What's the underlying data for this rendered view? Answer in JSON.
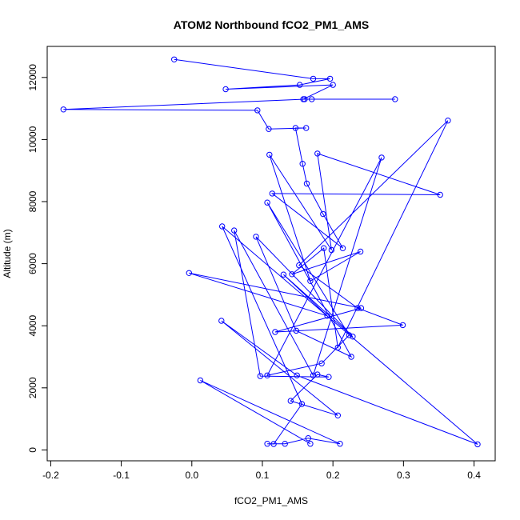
{
  "chart_data": {
    "type": "scatter",
    "title": "ATOM2 Northbound fCO2_PM1_AMS",
    "xlabel": "fCO2_PM1_AMS",
    "ylabel": "Altitude (m)",
    "xlim": [
      -0.205,
      0.43
    ],
    "ylim": [
      -350,
      13000
    ],
    "xticks": [
      -0.2,
      -0.1,
      0.0,
      0.1,
      0.2,
      0.3,
      0.4
    ],
    "xtick_labels": [
      "-0.2",
      "-0.1",
      "0.0",
      "0.1",
      "0.2",
      "0.3",
      "0.4"
    ],
    "yticks": [
      0,
      2000,
      4000,
      6000,
      8000,
      10000,
      12000
    ],
    "ytick_labels": [
      "0",
      "2000",
      "4000",
      "6000",
      "8000",
      "10000",
      "12000"
    ],
    "grid": false,
    "series_color": "#0000ff",
    "series": [
      {
        "mode": "lines+markers",
        "x": [
          -0.025,
          0.172,
          0.196,
          0.153,
          0.048,
          0.2,
          0.158,
          0.17,
          0.288,
          0.16,
          -0.182,
          0.093,
          0.109,
          0.162,
          0.147,
          0.157,
          0.163,
          0.186,
          0.214,
          0.114,
          0.352,
          0.178,
          0.198,
          0.11,
          0.168,
          0.239,
          0.142,
          0.187,
          0.207,
          0.363,
          0.152,
          0.235,
          0.299,
          0.118,
          0.24,
          -0.004,
          0.192,
          0.13,
          0.228,
          0.091,
          0.148,
          0.226,
          0.107,
          0.223,
          0.184,
          0.107,
          0.269,
          0.172,
          0.06,
          0.097,
          0.194,
          0.178,
          0.14,
          0.207,
          0.042,
          0.149,
          0.405,
          0.043,
          0.156,
          0.116,
          0.107,
          0.132,
          0.165,
          0.21,
          0.012,
          0.168
        ]
      }
    ],
    "y": [
      12580,
      11960,
      11960,
      11760,
      11620,
      11760,
      11300,
      11300,
      11300,
      11300,
      10970,
      10940,
      10340,
      10370,
      10370,
      9220,
      8580,
      7600,
      6500,
      8260,
      8220,
      9550,
      6440,
      9510,
      5440,
      6390,
      5660,
      6500,
      3300,
      10610,
      5950,
      4570,
      4020,
      3800,
      4570,
      5700,
      4320,
      5650,
      3650,
      6870,
      3840,
      3000,
      7970,
      3700,
      2790,
      2400,
      9420,
      2400,
      7070,
      2380,
      2350,
      2430,
      1580,
      1110,
      4160,
      2400,
      180,
      7200,
      1480,
      190,
      200,
      200,
      380,
      200,
      2240,
      200
    ]
  }
}
